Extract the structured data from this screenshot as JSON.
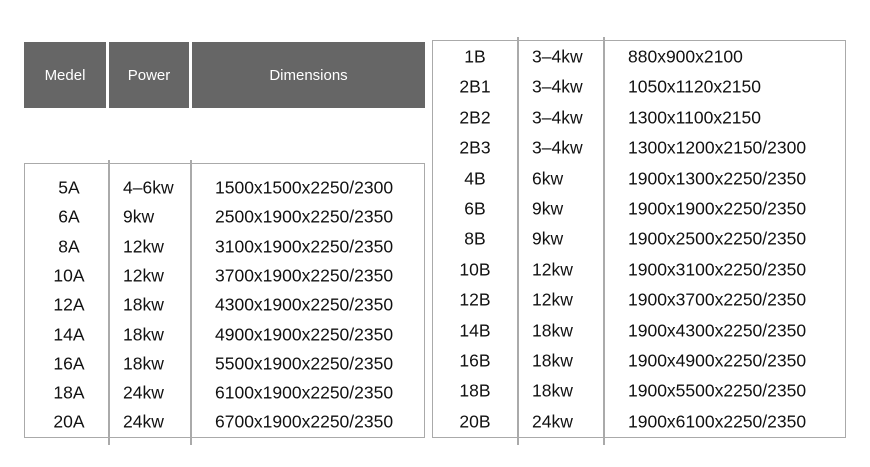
{
  "left_table": {
    "headers": [
      "Medel",
      "Power",
      "Dimensions"
    ],
    "header_color": "#666666",
    "rows": [
      [
        "5A",
        "4–6kw",
        "1500x1500x2250/2300"
      ],
      [
        "6A",
        "9kw",
        "2500x1900x2250/2350"
      ],
      [
        "8A",
        "12kw",
        "3100x1900x2250/2350"
      ],
      [
        "10A",
        "12kw",
        "3700x1900x2250/2350"
      ],
      [
        "12A",
        "18kw",
        "4300x1900x2250/2350"
      ],
      [
        "14A",
        "18kw",
        "4900x1900x2250/2350"
      ],
      [
        "16A",
        "18kw",
        "5500x1900x2250/2350"
      ],
      [
        "18A",
        "24kw",
        "6100x1900x2250/2350"
      ],
      [
        "20A",
        "24kw",
        "6700x1900x2250/2350"
      ]
    ]
  },
  "right_table": {
    "rows": [
      [
        "1B",
        "3–4kw",
        "880x900x2100"
      ],
      [
        "2B1",
        "3–4kw",
        "1050x1120x2150"
      ],
      [
        "2B2",
        "3–4kw",
        "1300x1100x2150"
      ],
      [
        "2B3",
        "3–4kw",
        "1300x1200x2150/2300"
      ],
      [
        "4B",
        "6kw",
        "1900x1300x2250/2350"
      ],
      [
        "6B",
        "9kw",
        "1900x1900x2250/2350"
      ],
      [
        "8B",
        "9kw",
        "1900x2500x2250/2350"
      ],
      [
        "10B",
        "12kw",
        "1900x3100x2250/2350"
      ],
      [
        "12B",
        "12kw",
        "1900x3700x2250/2350"
      ],
      [
        "14B",
        "18kw",
        "1900x4300x2250/2350"
      ],
      [
        "16B",
        "18kw",
        "1900x4900x2250/2350"
      ],
      [
        "18B",
        "18kw",
        "1900x5500x2250/2350"
      ],
      [
        "20B",
        "24kw",
        "1900x6100x2250/2350"
      ]
    ]
  }
}
